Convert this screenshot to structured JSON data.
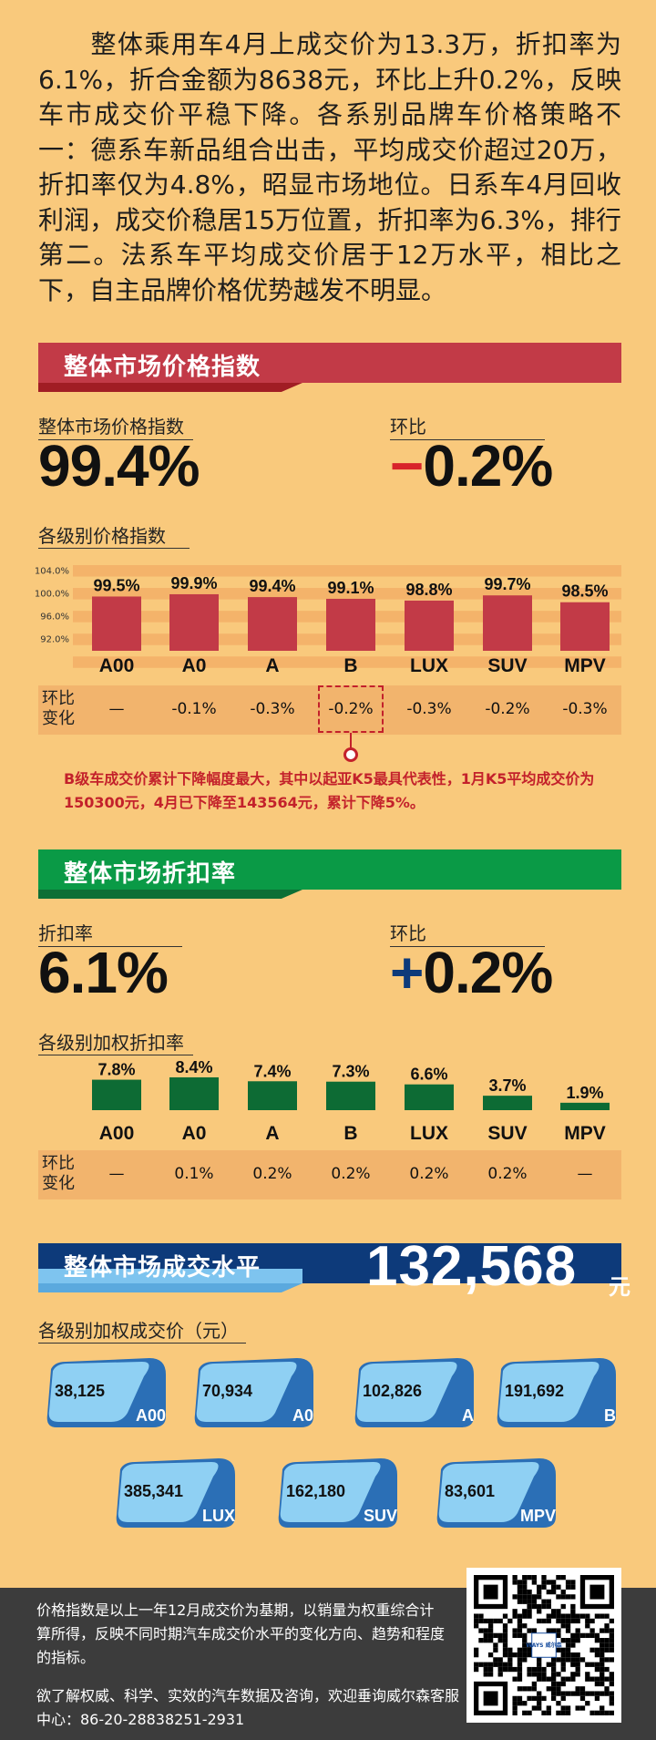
{
  "intro": "整体乘用车4月上成交价为13.3万，折扣率为6.1%，折合金额为8638元，环比上升0.2%，反映车市成交价平稳下降。各系别品牌车价格策略不一：德系车新品组合出击，平均成交价超过20万，折扣率仅为4.8%，昭显市场地位。日系车4月回收利润，成交价稳居15万位置，折扣率为6.3%，排行第二。法系车平均成交价居于12万水平，相比之下，自主品牌价格优势越发不明显。",
  "section1": {
    "title": "整体市场价格指数",
    "index_label": "整体市场价格指数",
    "index_value": "99.4%",
    "mom_label": "环比",
    "mom_sign": "−",
    "mom_value": "0.2%",
    "chart_label": "各级别价格指数",
    "change_label_1": "环比",
    "change_label_2": "变化",
    "note": "B级车成交价累计下降幅度最大，其中以起亚K5最具代表性，1月K5平均成交价为150300元，4月已下降至143564元，累计下降5%。"
  },
  "section2": {
    "title": "整体市场折扣率",
    "rate_label": "折扣率",
    "rate_value": "6.1%",
    "mom_label": "环比",
    "mom_sign": "+",
    "mom_value": "0.2%",
    "chart_label": "各级别加权折扣率",
    "change_label_1": "环比",
    "change_label_2": "变化"
  },
  "section3": {
    "title": "整体市场成交水平",
    "total": "132,568",
    "unit": "元",
    "chart_label": "各级别加权成交价（元）"
  },
  "chart_data": [
    {
      "type": "bar",
      "title": "各级别价格指数",
      "categories": [
        "A00",
        "A0",
        "A",
        "B",
        "LUX",
        "SUV",
        "MPV"
      ],
      "values": [
        99.5,
        99.9,
        99.4,
        99.1,
        98.8,
        99.7,
        98.5
      ],
      "value_labels": [
        "99.5%",
        "99.9%",
        "99.4%",
        "99.1%",
        "98.8%",
        "99.7%",
        "98.5%"
      ],
      "ylim": [
        90,
        105
      ],
      "yticks": [
        "104.0%",
        "100.0%",
        "96.0%",
        "92.0%"
      ],
      "ytick_values": [
        104,
        100,
        96,
        92
      ],
      "change": [
        "—",
        "-0.1%",
        "-0.3%",
        "-0.2%",
        "-0.3%",
        "-0.2%",
        "-0.3%"
      ],
      "highlight": "B",
      "color": "#c23a47"
    },
    {
      "type": "bar",
      "title": "各级别加权折扣率",
      "categories": [
        "A00",
        "A0",
        "A",
        "B",
        "LUX",
        "SUV",
        "MPV"
      ],
      "values": [
        7.8,
        8.4,
        7.4,
        7.3,
        6.6,
        3.7,
        1.9
      ],
      "value_labels": [
        "7.8%",
        "8.4%",
        "7.4%",
        "7.3%",
        "6.6%",
        "3.7%",
        "1.9%"
      ],
      "change": [
        "—",
        "0.1%",
        "0.2%",
        "0.2%",
        "0.2%",
        "0.2%",
        "—"
      ],
      "color": "#0d6b34"
    },
    {
      "type": "bar",
      "title": "各级别加权成交价（元）",
      "categories": [
        "A00",
        "A0",
        "A",
        "B",
        "LUX",
        "SUV",
        "MPV"
      ],
      "values": [
        38125,
        70934,
        102826,
        191692,
        385341,
        162180,
        83601
      ],
      "value_labels": [
        "38,125",
        "70,934",
        "102,826",
        "191,692",
        "385,341",
        "162,180",
        "83,601"
      ],
      "color": "#7ec4ef"
    }
  ],
  "footer": {
    "desc": "价格指数是以上一年12月成交价为基期，以销量为权重综合计算所得，反映不同时期汽车成交价水平的变化方向、趋势和程度的指标。",
    "contact": "欲了解权威、科学、实效的汽车数据及咨询，欢迎垂询威尔森客服中心：86-20-28838251-2931",
    "qr_logo": "WAYS 威尔森"
  }
}
